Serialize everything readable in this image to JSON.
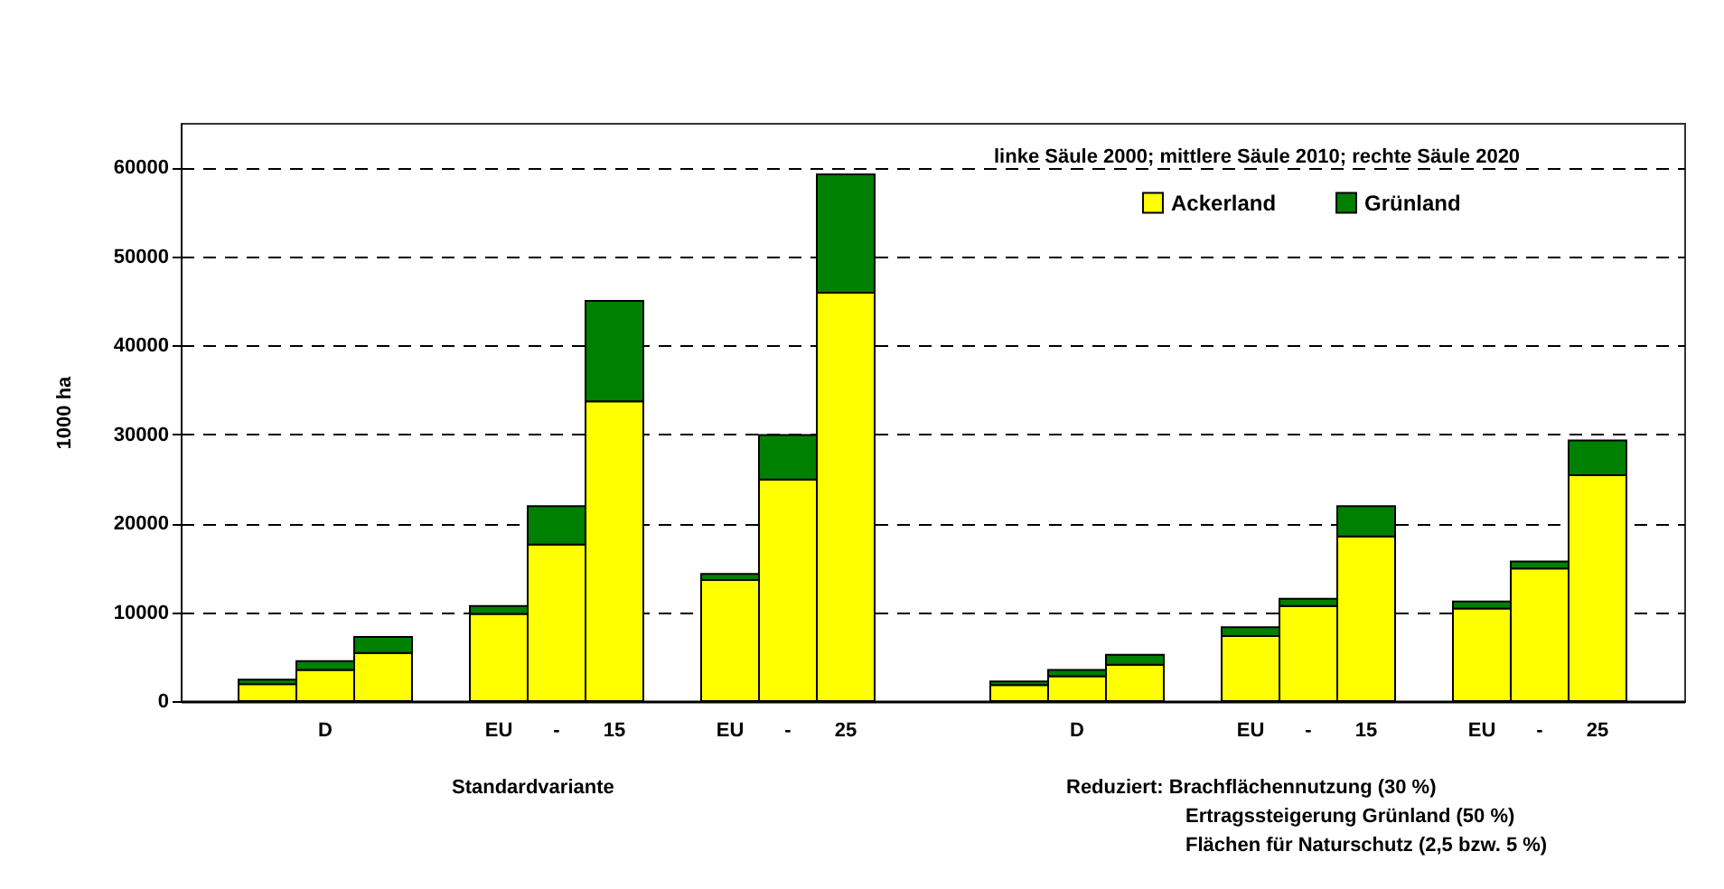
{
  "chart_data": {
    "type": "bar",
    "ylabel": "1000 ha",
    "stacked": true,
    "categories": [
      null,
      "D",
      null,
      "EU",
      "-",
      "15",
      "EU",
      "-",
      "25",
      null,
      "D",
      null,
      "EU",
      "-",
      "15",
      "EU",
      "-",
      "25"
    ],
    "series": [
      {
        "name": "Ackerland",
        "color": "#ffff00",
        "values": [
          1900,
          3500,
          5400,
          9800,
          17600,
          33700,
          13600,
          24900,
          45900,
          1800,
          2800,
          4100,
          7300,
          10700,
          18500,
          10400,
          14900,
          25400
        ]
      },
      {
        "name": "Grünland",
        "color": "#008000",
        "values": [
          500,
          1000,
          1800,
          900,
          4300,
          11300,
          700,
          5000,
          13300,
          400,
          700,
          1100,
          1000,
          800,
          3400,
          800,
          800,
          3900
        ]
      }
    ],
    "ylim": [
      0,
      65000
    ],
    "yticks": [
      0,
      10000,
      20000,
      30000,
      40000,
      50000,
      60000
    ],
    "grid": "y",
    "legend": "top right",
    "annotations": [
      "linke Säule 2000; mittlere Säule 2010; rechte Säule 2020",
      "Standardvariante",
      "Reduziert: Brachflächennutzung (30 %)",
      "Ertragssteigerung Grünland (50 %)",
      "Flächen für Naturschutz (2,5 bzw. 5 %)"
    ]
  }
}
